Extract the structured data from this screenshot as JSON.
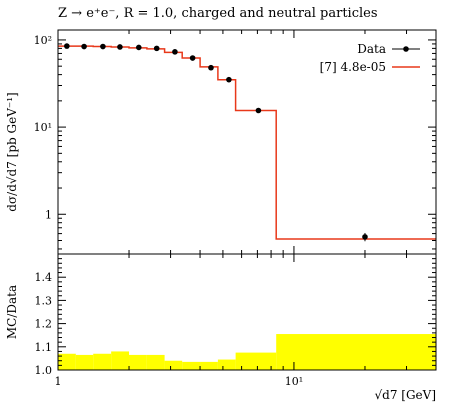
{
  "title": "Z → e⁺e⁻, R = 1.0, charged and neutral particles",
  "legend": {
    "data": "Data",
    "mc": "[7] 4.8e-05"
  },
  "chart_data": [
    {
      "type": "line",
      "ylabel": "dσ/d√d7 [pb GeV⁻¹]",
      "yscale": "log",
      "xscale": "log",
      "xlim": [
        1.0,
        40.0
      ],
      "ylim": [
        0.35,
        130
      ],
      "yticks": [
        1,
        10,
        100
      ],
      "ytick_labels": [
        "1",
        "10¹",
        "10²"
      ],
      "legend_position": "top-right",
      "series": [
        {
          "name": "Data",
          "x": [
            1.09,
            1.29,
            1.55,
            1.83,
            2.2,
            2.62,
            3.13,
            3.72,
            4.45,
            5.3,
            7.07,
            20.0
          ],
          "y": [
            85,
            84,
            84,
            83,
            82,
            80,
            73,
            62,
            48,
            35,
            15.5,
            0.55
          ],
          "yerr": [
            0,
            0,
            0,
            0,
            0,
            0,
            0,
            0,
            0,
            0,
            0,
            0.06
          ]
        },
        {
          "name": "[7] 4.8e-05",
          "bin_edges": [
            1.0,
            1.19,
            1.41,
            1.68,
            2.0,
            2.38,
            2.83,
            3.36,
            4.0,
            4.76,
            5.66,
            8.41,
            40.0
          ],
          "values": [
            85,
            85,
            84,
            83,
            81,
            79,
            72,
            62,
            49,
            35,
            15.5,
            0.52
          ]
        }
      ]
    },
    {
      "type": "area",
      "ylabel": "MC/Data",
      "xlabel": "√d7 [GeV]",
      "xscale": "log",
      "xlim": [
        1.0,
        40.0
      ],
      "ylim": [
        1.0,
        1.5
      ],
      "xticks": [
        1,
        10
      ],
      "xtick_labels": [
        "1",
        "10¹"
      ],
      "yticks": [
        1.0,
        1.1,
        1.2,
        1.3,
        1.4
      ],
      "ytick_labels": [
        "1.0",
        "1.1",
        "1.2",
        "1.3",
        "1.4"
      ],
      "band_color": "#ffff00",
      "bin_edges": [
        1.0,
        1.19,
        1.41,
        1.68,
        2.0,
        2.38,
        2.83,
        3.36,
        4.0,
        4.76,
        5.66,
        8.41,
        40.0
      ],
      "band_upper": [
        1.07,
        1.065,
        1.07,
        1.08,
        1.065,
        1.065,
        1.04,
        1.035,
        1.035,
        1.045,
        1.075,
        1.155
      ],
      "band_lower": [
        1.0,
        1.0,
        1.0,
        1.0,
        1.0,
        1.0,
        1.0,
        1.0,
        1.0,
        1.0,
        1.0,
        1.0
      ]
    }
  ],
  "colors": {
    "mc": "#e8381a",
    "data": "#000000",
    "band": "#ffff00"
  }
}
